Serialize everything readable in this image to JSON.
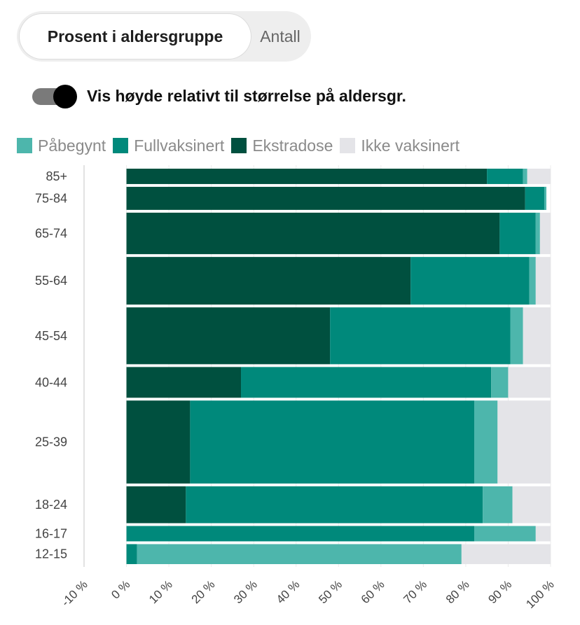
{
  "tabs": {
    "active": "Prosent i aldersgruppe",
    "inactive": "Antall"
  },
  "toggle": {
    "label": "Vis høyde relativt til størrelse på aldersgr.",
    "on": true
  },
  "chart_data": {
    "type": "bar",
    "orientation": "horizontal",
    "stacked": true,
    "series": [
      {
        "name": "Ekstradose",
        "color": "#00503f",
        "values": [
          85,
          94,
          88,
          67,
          48,
          27,
          15,
          14,
          0,
          0
        ]
      },
      {
        "name": "Fullvaksinert",
        "color": "#00897b",
        "values": [
          8.5,
          5,
          8.5,
          28,
          42.5,
          59,
          67,
          70,
          82,
          2.5
        ]
      },
      {
        "name": "Påbegynt",
        "color": "#4db6ac",
        "values": [
          1,
          -0.5,
          1,
          1.5,
          3,
          4,
          5.5,
          7,
          14.5,
          76.5
        ]
      },
      {
        "name": "Ikke vaksinert",
        "color": "#e4e4e8",
        "values": [
          5.5,
          0,
          2.5,
          3.5,
          6.5,
          10,
          12.5,
          9,
          3.5,
          21
        ]
      }
    ],
    "categories": [
      "85+",
      "75-84",
      "65-74",
      "55-64",
      "45-54",
      "40-44",
      "25-39",
      "18-24",
      "16-17",
      "12-15"
    ],
    "relative_height": [
      1,
      1.5,
      2.7,
      3.1,
      3.7,
      2.0,
      5.4,
      2.4,
      1.0,
      1.3
    ],
    "xticks": [
      "-10 %",
      "0 %",
      "10 %",
      "20 %",
      "30 %",
      "40 %",
      "50 %",
      "60 %",
      "70 %",
      "80 %",
      "90 %",
      "100 %"
    ],
    "xlim": [
      -10,
      100
    ],
    "grid": true
  }
}
